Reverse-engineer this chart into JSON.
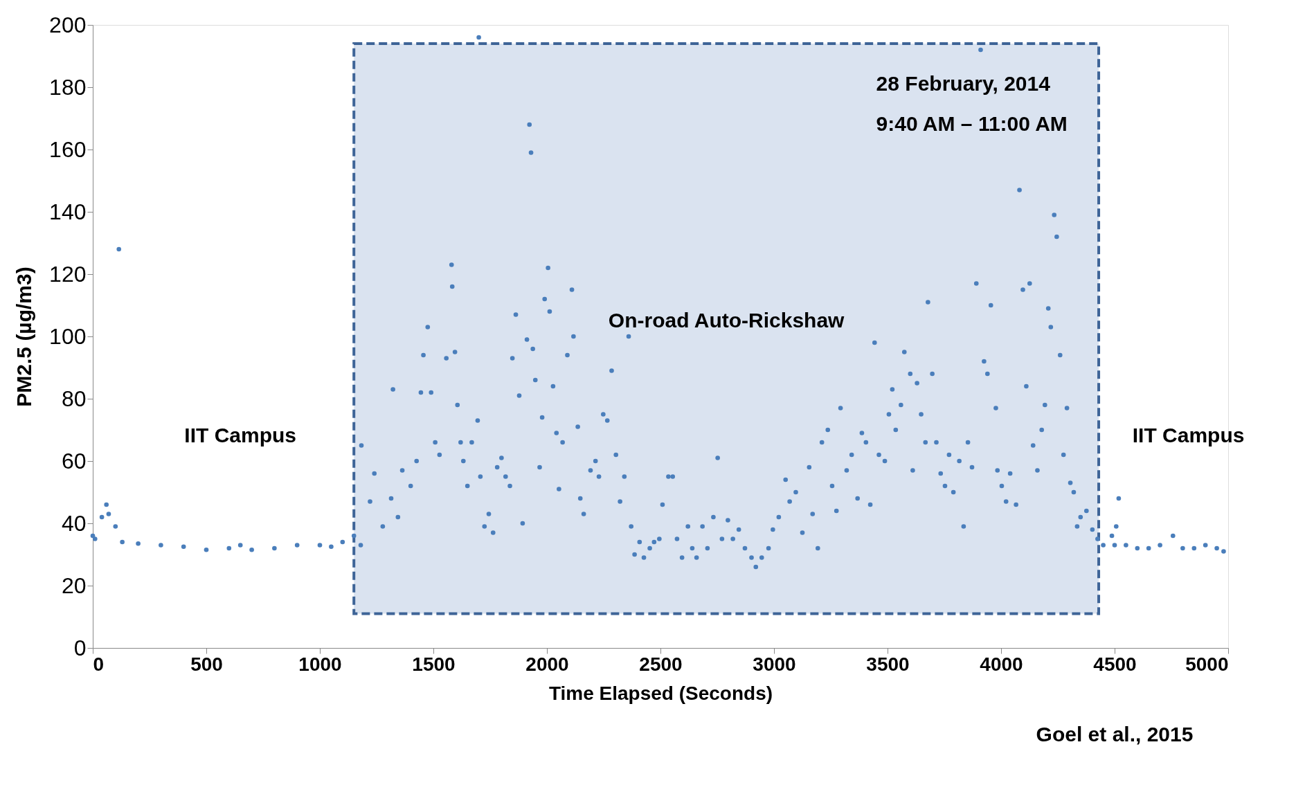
{
  "chart_data": {
    "type": "scatter",
    "xlabel": "Time Elapsed (Seconds)",
    "ylabel": "PM2.5 (µg/m3)",
    "annotations": [
      "IIT Campus",
      "IIT Campus",
      "28 February, 2014",
      "9:40 AM – 11:00 AM",
      "Goel et al., 2015"
    ],
    "bands": [
      {
        "axis": "x",
        "from": 1150,
        "to": 4430,
        "label": "On-road Auto-Rickshaw",
        "color": "#dae3f0"
      }
    ],
    "xlim": [
      0,
      5000
    ],
    "xticks": [
      0,
      500,
      1000,
      1500,
      2000,
      2500,
      3000,
      3500,
      4000,
      4500,
      5000
    ],
    "ylim": [
      0,
      200
    ],
    "yticks": [
      0,
      20,
      40,
      60,
      80,
      100,
      120,
      140,
      160,
      180,
      200
    ],
    "grid": false,
    "legend": false,
    "marker": "circle",
    "series": [
      {
        "color": "#4a7ebb",
        "x": [
          0,
          10,
          40,
          60,
          70,
          100,
          115,
          130,
          200,
          300,
          400,
          500,
          600,
          650,
          700,
          800,
          900,
          1000,
          1050,
          1100,
          1150,
          1180,
          1183,
          1221,
          1240,
          1277,
          1314,
          1322,
          1344,
          1363,
          1400,
          1426,
          1445,
          1456,
          1475,
          1490,
          1508,
          1527,
          1557,
          1580,
          1583,
          1595,
          1606,
          1620,
          1632,
          1650,
          1669,
          1695,
          1700,
          1707,
          1725,
          1744,
          1763,
          1781,
          1800,
          1818,
          1837,
          1848,
          1863,
          1878,
          1893,
          1912,
          1923,
          1930,
          1938,
          1949,
          1968,
          1979,
          1990,
          2005,
          2012,
          2027,
          2042,
          2053,
          2069,
          2090,
          2110,
          2117,
          2136,
          2147,
          2162,
          2192,
          2214,
          2229,
          2248,
          2266,
          2285,
          2304,
          2322,
          2341,
          2360,
          2371,
          2386,
          2408,
          2427,
          2453,
          2472,
          2495,
          2509,
          2535,
          2554,
          2573,
          2595,
          2621,
          2640,
          2659,
          2685,
          2707,
          2733,
          2752,
          2771,
          2797,
          2819,
          2845,
          2872,
          2901,
          2920,
          2946,
          2976,
          2995,
          3021,
          3051,
          3069,
          3096,
          3125,
          3155,
          3170,
          3193,
          3211,
          3237,
          3256,
          3275,
          3293,
          3320,
          3342,
          3368,
          3387,
          3405,
          3424,
          3443,
          3462,
          3488,
          3506,
          3521,
          3536,
          3559,
          3574,
          3600,
          3611,
          3630,
          3648,
          3667,
          3678,
          3697,
          3715,
          3734,
          3753,
          3771,
          3790,
          3816,
          3835,
          3854,
          3872,
          3891,
          3910,
          3925,
          3940,
          3955,
          3977,
          3984,
          4003,
          4022,
          4040,
          4066,
          4081,
          4096,
          4111,
          4126,
          4141,
          4160,
          4179,
          4193,
          4208,
          4219,
          4234,
          4245,
          4260,
          4275,
          4290,
          4305,
          4320,
          4335,
          4350,
          4376,
          4402,
          4425,
          4450,
          4488,
          4500,
          4507,
          4518,
          4550,
          4600,
          4650,
          4700,
          4757,
          4800,
          4850,
          4900,
          4950,
          4980
        ],
        "values": [
          36,
          35,
          42,
          46,
          43,
          39,
          128,
          34,
          33.5,
          33,
          32.5,
          31.5,
          32,
          33,
          31.5,
          32,
          33,
          33,
          32.5,
          34,
          36,
          33,
          65,
          47,
          56,
          39,
          48,
          83,
          42,
          57,
          52,
          60,
          82,
          94,
          103,
          82,
          66,
          62,
          93,
          123,
          116,
          95,
          78,
          66,
          60,
          52,
          66,
          73,
          196,
          55,
          39,
          43,
          37,
          58,
          61,
          55,
          52,
          93,
          107,
          81,
          40,
          99,
          168,
          159,
          96,
          86,
          58,
          74,
          112,
          122,
          108,
          84,
          69,
          51,
          66,
          94,
          115,
          100,
          71,
          48,
          43,
          57,
          60,
          55,
          75,
          73,
          89,
          62,
          47,
          55,
          100,
          39,
          30,
          34,
          29,
          32,
          34,
          35,
          46,
          55,
          55,
          35,
          29,
          39,
          32,
          29,
          39,
          32,
          42,
          61,
          35,
          41,
          35,
          38,
          32,
          29,
          26,
          29,
          32,
          38,
          42,
          54,
          47,
          50,
          37,
          58,
          43,
          32,
          66,
          70,
          52,
          44,
          77,
          57,
          62,
          48,
          69,
          66,
          46,
          98,
          62,
          60,
          75,
          83,
          70,
          78,
          95,
          88,
          57,
          85,
          75,
          66,
          111,
          88,
          66,
          56,
          52,
          62,
          50,
          60,
          39,
          66,
          58,
          117,
          192,
          92,
          88,
          110,
          77,
          57,
          52,
          47,
          56,
          46,
          147,
          115,
          84,
          117,
          65,
          57,
          70,
          78,
          109,
          103,
          139,
          132,
          94,
          62,
          77,
          53,
          50,
          39,
          42,
          44,
          38,
          35,
          33,
          36,
          33,
          39,
          48,
          33,
          32,
          32,
          33,
          36,
          32,
          32,
          33,
          32,
          31
        ]
      }
    ]
  }
}
